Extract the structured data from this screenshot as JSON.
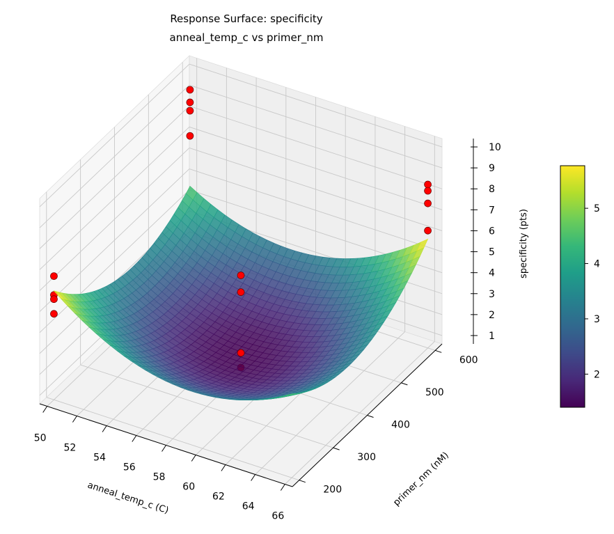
{
  "chart_data": {
    "type": "surface3d",
    "title": "Response Surface: specificity",
    "subtitle": "anneal_temp_c vs primer_nm",
    "xlabel": "anneal_temp_c (C)",
    "ylabel": "primer_nm (nM)",
    "zlabel": "specificity (pts)",
    "xlim": [
      49.5,
      66.5
    ],
    "ylim": [
      180,
      620
    ],
    "zlim": [
      0.6,
      10.4
    ],
    "xticks": [
      50,
      52,
      54,
      56,
      58,
      60,
      62,
      64,
      66
    ],
    "yticks": [
      200,
      300,
      400,
      500,
      600
    ],
    "zticks": [
      1,
      2,
      3,
      4,
      5,
      6,
      7,
      8,
      9,
      10
    ],
    "grid": true,
    "colormap": "viridis",
    "surface_model": {
      "center_x": 58,
      "center_y": 400,
      "scale_x": 8,
      "scale_y": 200,
      "intercept": 1.4,
      "xx": 2.0,
      "yy": 1.8,
      "xy": 0.6
    },
    "colorbar": {
      "range": [
        1.4,
        5.77
      ],
      "ticks": [
        2,
        3,
        4,
        5
      ]
    },
    "points_color": "#ff0000",
    "points": [
      {
        "x": 50,
        "y": 200,
        "z": [
          6.5,
          5.6,
          5.4,
          4.7
        ]
      },
      {
        "x": 50,
        "y": 600,
        "z": [
          9.2,
          8.6,
          8.2,
          7.0
        ]
      },
      {
        "x": 66,
        "y": 600,
        "z": [
          8.4,
          8.1,
          7.5,
          6.2
        ]
      },
      {
        "x": 58,
        "y": 400,
        "z": [
          5.3,
          4.5,
          1.6,
          0.9
        ]
      }
    ]
  }
}
